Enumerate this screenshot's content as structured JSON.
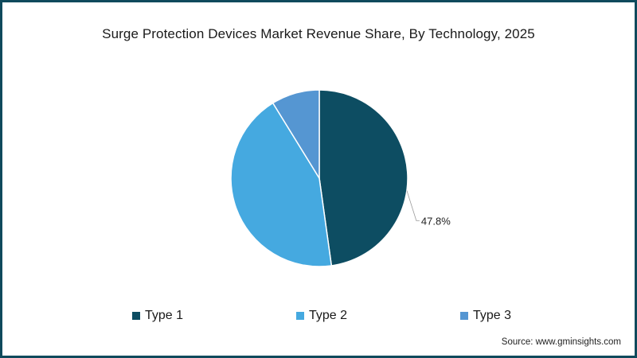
{
  "chart_data": {
    "type": "pie",
    "title": "Surge Protection Devices Market Revenue Share, By Technology, 2025",
    "categories": [
      "Type 1",
      "Type 2",
      "Type 3"
    ],
    "values": [
      47.8,
      43.4,
      8.8
    ],
    "labels_shown": [
      "47.8%",
      "",
      ""
    ],
    "colors": [
      "#0d4d62",
      "#45a9e0",
      "#5596d2"
    ],
    "start_angle_deg": 0,
    "direction": "clockwise",
    "legend_position": "bottom",
    "source": "Source: www.gminsights.com"
  },
  "title": "Surge Protection Devices Market Revenue Share, By Technology, 2025",
  "legend": [
    {
      "label": "Type 1",
      "color": "#0d4d62"
    },
    {
      "label": "Type 2",
      "color": "#45a9e0"
    },
    {
      "label": "Type 3",
      "color": "#5596d2"
    }
  ],
  "data_label": "47.8%",
  "source": "Source: www.gminsights.com",
  "frame_color": "#0f4a5c"
}
